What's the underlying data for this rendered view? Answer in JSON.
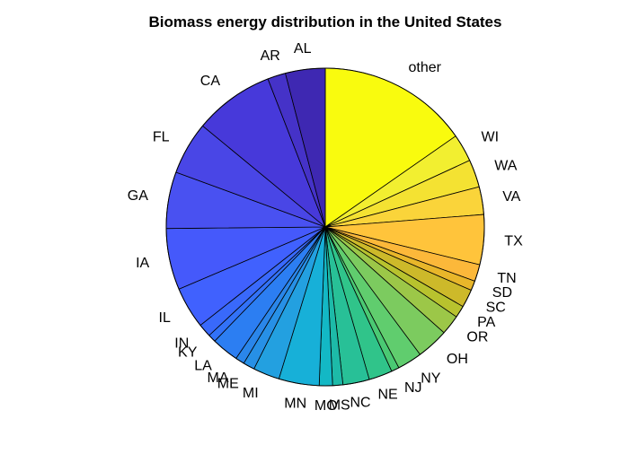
{
  "chart_data": {
    "type": "pie",
    "title": "Biomass energy distribution in the United States",
    "start": "top",
    "direction": "clockwise",
    "slices": [
      {
        "label": "other",
        "value": 25.0,
        "color": "#f9fb0e"
      },
      {
        "label": "WI",
        "value": 4.6,
        "color": "#f2ef30"
      },
      {
        "label": "WA",
        "value": 4.6,
        "color": "#f4e232"
      },
      {
        "label": "VA",
        "value": 4.6,
        "color": "#fad43a"
      },
      {
        "label": "TX",
        "value": 8.3,
        "color": "#ffc43b"
      },
      {
        "label": "TN",
        "value": 2.8,
        "color": "#fcb83a"
      },
      {
        "label": "SD",
        "value": 1.6,
        "color": "#e8b62a"
      },
      {
        "label": "SC",
        "value": 3.0,
        "color": "#cdb92a"
      },
      {
        "label": "PA",
        "value": 2.0,
        "color": "#b8c22e"
      },
      {
        "label": "OR",
        "value": 3.3,
        "color": "#9cc748"
      },
      {
        "label": "OH",
        "value": 5.3,
        "color": "#7ccb5f"
      },
      {
        "label": "NY",
        "value": 4.1,
        "color": "#60cd6e"
      },
      {
        "label": "NJ",
        "value": 1.3,
        "color": "#4ac973"
      },
      {
        "label": "NE",
        "value": 3.9,
        "color": "#30c48a"
      },
      {
        "label": "NC",
        "value": 4.4,
        "color": "#28c097"
      },
      {
        "label": "MS",
        "value": 1.7,
        "color": "#1dbaa8"
      },
      {
        "label": "MO",
        "value": 2.2,
        "color": "#13b8c5"
      },
      {
        "label": "MN",
        "value": 6.7,
        "color": "#17b0d8"
      },
      {
        "label": "MI",
        "value": 4.4,
        "color": "#23a0e0"
      },
      {
        "label": "ME",
        "value": 1.9,
        "color": "#2790e6"
      },
      {
        "label": "MA",
        "value": 1.5,
        "color": "#2a86ea"
      },
      {
        "label": "LA",
        "value": 4.5,
        "color": "#2c7ef2"
      },
      {
        "label": "KY",
        "value": 1.3,
        "color": "#3272f8"
      },
      {
        "label": "IN",
        "value": 2.2,
        "color": "#3969fb"
      },
      {
        "label": "IL",
        "value": 6.9,
        "color": "#4061fe"
      },
      {
        "label": "IA",
        "value": 10.2,
        "color": "#4559fb"
      },
      {
        "label": "GA",
        "value": 9.4,
        "color": "#4951f1"
      },
      {
        "label": "FL",
        "value": 8.8,
        "color": "#4946e6"
      },
      {
        "label": "CA",
        "value": 13.3,
        "color": "#4739da"
      },
      {
        "label": "AR",
        "value": 3.0,
        "color": "#4532c8"
      },
      {
        "label": "AL",
        "value": 6.6,
        "color": "#3e28b2"
      }
    ]
  }
}
